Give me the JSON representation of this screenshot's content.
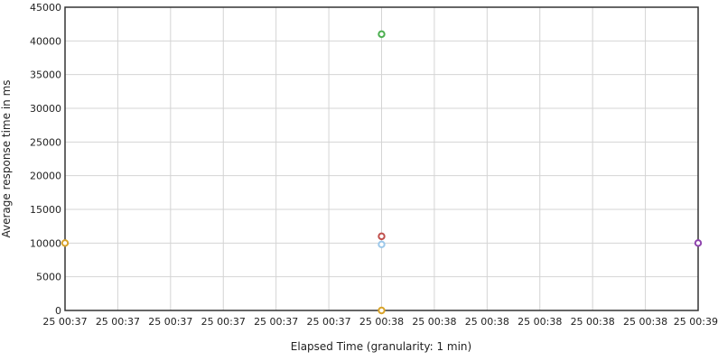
{
  "chart_data": {
    "type": "scatter",
    "xlabel": "Elapsed Time (granularity: 1 min)",
    "ylabel": "Average response time in ms",
    "ylim": [
      0,
      45000
    ],
    "y_ticks": [
      0,
      5000,
      10000,
      15000,
      20000,
      25000,
      30000,
      35000,
      40000,
      45000
    ],
    "x_tick_labels": [
      "25 00:37",
      "25 00:37",
      "25 00:37",
      "25 00:37",
      "25 00:37",
      "25 00:37",
      "25 00:38",
      "25 00:38",
      "25 00:38",
      "25 00:38",
      "25 00:38",
      "25 00:38",
      "25 00:39"
    ],
    "grid": true,
    "series": [
      {
        "color": "#d8a32a",
        "points": [
          {
            "x_index": 0,
            "y": 10000
          },
          {
            "x_index": 6,
            "y": 0
          }
        ]
      },
      {
        "color": "#4caf50",
        "points": [
          {
            "x_index": 6,
            "y": 41000
          }
        ]
      },
      {
        "color": "#c0504d",
        "points": [
          {
            "x_index": 6,
            "y": 11000
          }
        ]
      },
      {
        "color": "#9cc8ea",
        "points": [
          {
            "x_index": 6,
            "y": 9800
          }
        ]
      },
      {
        "color": "#8e44ad",
        "points": [
          {
            "x_index": 12,
            "y": 10000
          }
        ]
      }
    ]
  }
}
